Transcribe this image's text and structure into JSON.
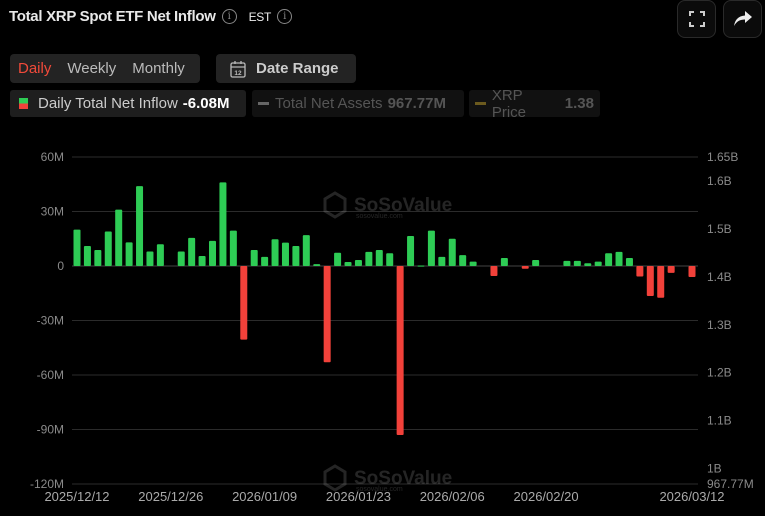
{
  "header": {
    "title": "Total XRP Spot ETF Net Inflow",
    "timezone": "EST",
    "fullscreen_icon": "fullscreen-icon",
    "share_icon": "share-icon"
  },
  "controls": {
    "periods": [
      {
        "label": "Daily",
        "active": true
      },
      {
        "label": "Weekly",
        "active": false
      },
      {
        "label": "Monthly",
        "active": false
      }
    ],
    "date_range_label": "Date Range",
    "calendar_icon_text": "12"
  },
  "legend": [
    {
      "label": "Daily Total Net Inflow",
      "value": "-6.08M",
      "active": true
    },
    {
      "label": "Total Net Assets",
      "value": "967.77M",
      "active": false
    },
    {
      "label": "XRP Price",
      "value": "1.38",
      "active": false
    }
  ],
  "watermark": {
    "brand": "SoSoValue",
    "site": "sosovalue.com"
  },
  "colors": {
    "positive": "#2ecc55",
    "negative": "#f2413a",
    "accent": "#f04a3a",
    "assets_line": "#666666",
    "price_line": "#6b5a1e"
  },
  "chart_data": {
    "type": "bar",
    "title": "Total XRP Spot ETF Net Inflow",
    "grid": true,
    "categories": [
      "2025/12/12",
      "2025/12/15",
      "2025/12/16",
      "2025/12/17",
      "2025/12/18",
      "2025/12/19",
      "2025/12/22",
      "2025/12/23",
      "2025/12/24",
      "2025/12/26",
      "2025/12/29",
      "2025/12/30",
      "2025/12/31",
      "2026/01/02",
      "2026/01/05",
      "2026/01/06",
      "2026/01/07",
      "2026/01/08",
      "2026/01/09",
      "2026/01/12",
      "2026/01/13",
      "2026/01/14",
      "2026/01/15",
      "2026/01/16",
      "2026/01/20",
      "2026/01/21",
      "2026/01/22",
      "2026/01/23",
      "2026/01/26",
      "2026/01/27",
      "2026/01/28",
      "2026/01/29",
      "2026/02/02",
      "2026/02/03",
      "2026/02/04",
      "2026/02/05",
      "2026/02/06",
      "2026/02/09",
      "2026/02/10",
      "2026/02/11",
      "2026/02/12",
      "2026/02/13",
      "2026/02/17",
      "2026/02/18",
      "2026/02/19",
      "2026/02/20",
      "2026/02/23",
      "2026/02/24",
      "2026/02/25",
      "2026/02/26",
      "2026/02/27",
      "2026/03/02",
      "2026/03/03",
      "2026/03/04",
      "2026/03/05",
      "2026/03/06",
      "2026/03/09",
      "2026/03/10",
      "2026/03/11",
      "2026/03/12"
    ],
    "series": [
      {
        "name": "Daily Total Net Inflow",
        "unit": "M",
        "values": [
          20,
          11,
          8.8,
          19,
          31,
          13,
          44,
          8,
          12,
          0,
          8,
          15.5,
          5.5,
          13.8,
          46,
          19.5,
          -40.5,
          8.8,
          5,
          14.7,
          12.9,
          11,
          17,
          1,
          -53,
          7.3,
          2.2,
          3.3,
          7.8,
          8.8,
          7,
          -93,
          16.5,
          0.3,
          19.5,
          5,
          15,
          6,
          2.4,
          0,
          -5.5,
          4.4,
          0,
          -1.5,
          3.3,
          0,
          0,
          2.8,
          2.8,
          1.5,
          2.4,
          7,
          7.8,
          4.4,
          -5.8,
          -16.5,
          -17.5,
          -3.8,
          0,
          -6.08
        ]
      }
    ],
    "x_tick_labels": [
      "2025/12/12",
      "2025/12/26",
      "2026/01/09",
      "2026/01/23",
      "2026/02/06",
      "2026/02/20",
      "2026/03/12"
    ],
    "y_left": {
      "ticks": [
        "60M",
        "30M",
        "0",
        "-30M",
        "-60M",
        "-90M",
        "-120M"
      ],
      "tick_values": [
        60,
        30,
        0,
        -30,
        -60,
        -90,
        -120
      ],
      "range": [
        -120,
        60
      ]
    },
    "y_right": {
      "ticks": [
        "1.65B",
        "1.6B",
        "1.5B",
        "1.4B",
        "1.3B",
        "1.2B",
        "1.1B",
        "1B",
        "967.77M"
      ],
      "tick_values": [
        1.65,
        1.6,
        1.5,
        1.4,
        1.3,
        1.2,
        1.1,
        1.0,
        0.96777
      ],
      "range": [
        0.96777,
        1.65
      ]
    }
  }
}
